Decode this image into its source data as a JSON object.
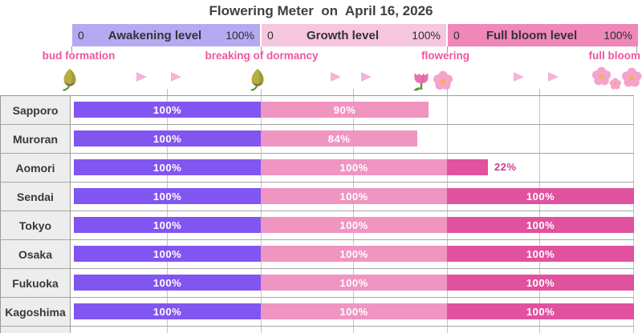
{
  "title": "Flowering Meter  on  April 16, 2026",
  "header": {
    "sections": [
      {
        "name": "awakening",
        "label": "Awakening level",
        "min": "0",
        "max": "100%",
        "band_color": "#b6a9f2",
        "bar_color": "#8156f0"
      },
      {
        "name": "growth",
        "label": "Growth level",
        "min": "0",
        "max": "100%",
        "band_color": "#f6c6de",
        "bar_color": "#f094c2"
      },
      {
        "name": "full-bloom",
        "label": "Full bloom level",
        "min": "0",
        "max": "100%",
        "band_color": "#ef87b9",
        "bar_color": "#e0529e"
      }
    ]
  },
  "stages": [
    {
      "label": "bud formation",
      "icon": "bud-icon"
    },
    {
      "label": "breaking of dormancy",
      "icon": "bud-icon"
    },
    {
      "label": "flowering",
      "icon": "tulip-and-blossom-icon"
    },
    {
      "label": "full bloom",
      "icon": "blossom-cluster-icon"
    }
  ],
  "colors": {
    "stage_label_text": "#f0549f",
    "outside_value_label": "#d63a8e",
    "title_text": "#404040",
    "arrow_pink": "#f5b3d7"
  },
  "chart_data": {
    "type": "bar",
    "title": "Flowering Meter  on  April 16, 2026",
    "categories": [
      "Sapporo",
      "Muroran",
      "Aomori",
      "Sendai",
      "Tokyo",
      "Osaka",
      "Fukuoka",
      "Kagoshima"
    ],
    "series": [
      {
        "name": "Awakening level",
        "values": [
          100,
          100,
          100,
          100,
          100,
          100,
          100,
          100
        ]
      },
      {
        "name": "Growth level",
        "values": [
          90,
          84,
          100,
          100,
          100,
          100,
          100,
          100
        ]
      },
      {
        "name": "Full bloom level",
        "values": [
          0,
          0,
          22,
          100,
          100,
          100,
          100,
          100
        ]
      }
    ],
    "value_suffix": "%",
    "xlim": [
      0,
      100
    ],
    "grid": true,
    "orientation": "horizontal",
    "value_labels_shown": true
  }
}
